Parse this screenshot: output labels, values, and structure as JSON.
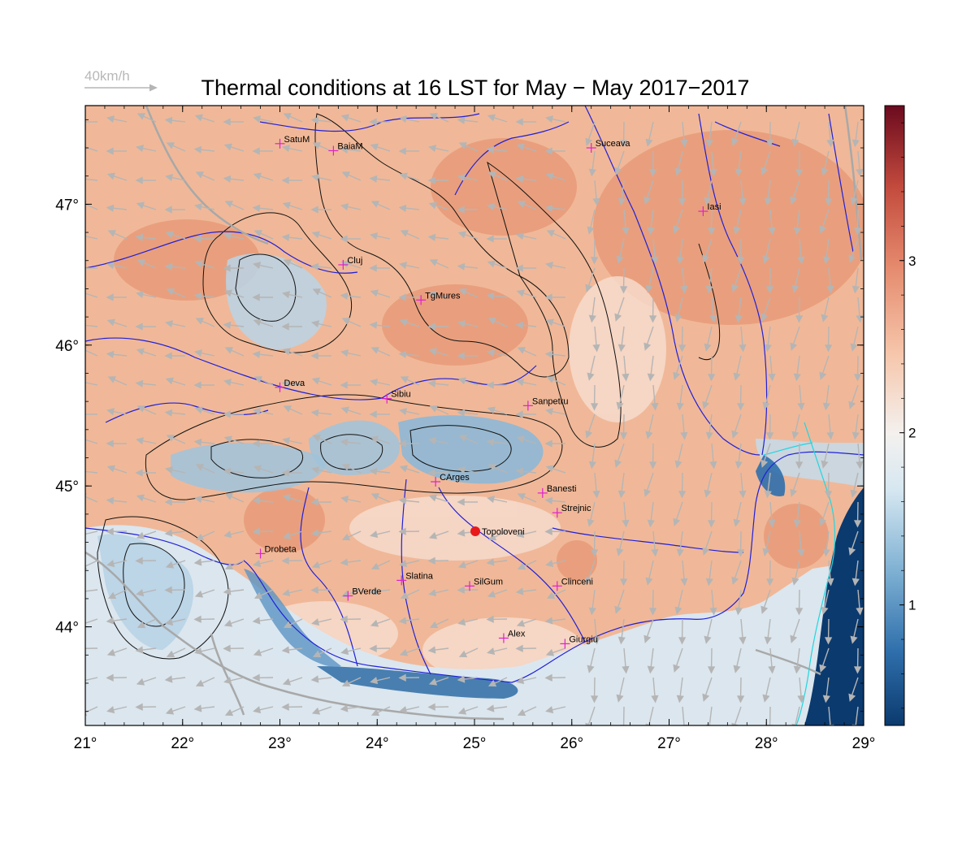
{
  "title": "Thermal conditions at 16 LST for May − May  2017−2017",
  "wind_legend": {
    "label": "40km/h",
    "arrow_color": "#b5b5b5"
  },
  "map": {
    "lon_range": [
      21,
      29
    ],
    "lat_range": [
      43.3,
      47.7
    ],
    "x_ticks": [
      "21°",
      "22°",
      "23°",
      "24°",
      "25°",
      "26°",
      "27°",
      "28°",
      "29°"
    ],
    "y_ticks": [
      {
        "lat": 44,
        "label": "44°"
      },
      {
        "lat": 45,
        "label": "45°"
      },
      {
        "lat": 46,
        "label": "46°"
      },
      {
        "lat": 47,
        "label": "47°"
      }
    ],
    "cities": [
      {
        "name": "SatuM",
        "lon": 23.0,
        "lat": 47.43
      },
      {
        "name": "BaiaM",
        "lon": 23.55,
        "lat": 47.38
      },
      {
        "name": "Suceava",
        "lon": 26.2,
        "lat": 47.4
      },
      {
        "name": "Iasi",
        "lon": 27.35,
        "lat": 46.95
      },
      {
        "name": "Cluj",
        "lon": 23.65,
        "lat": 46.57
      },
      {
        "name": "TgMures",
        "lon": 24.45,
        "lat": 46.32
      },
      {
        "name": "Deva",
        "lon": 23.0,
        "lat": 45.7
      },
      {
        "name": "Sibiu",
        "lon": 24.1,
        "lat": 45.62
      },
      {
        "name": "Sanpetru",
        "lon": 25.55,
        "lat": 45.57
      },
      {
        "name": "CArges",
        "lon": 24.6,
        "lat": 45.03
      },
      {
        "name": "Banesti",
        "lon": 25.7,
        "lat": 44.95
      },
      {
        "name": "Strejnic",
        "lon": 25.85,
        "lat": 44.81
      },
      {
        "name": "Drobeta",
        "lon": 22.8,
        "lat": 44.52
      },
      {
        "name": "Slatina",
        "lon": 24.25,
        "lat": 44.33
      },
      {
        "name": "SilGum",
        "lon": 24.95,
        "lat": 44.29
      },
      {
        "name": "Clinceni",
        "lon": 25.85,
        "lat": 44.29
      },
      {
        "name": "BVerde",
        "lon": 23.7,
        "lat": 44.22
      },
      {
        "name": "Alex",
        "lon": 25.3,
        "lat": 43.92
      },
      {
        "name": "Giurgiu",
        "lon": 25.93,
        "lat": 43.88
      }
    ],
    "highlight": {
      "name": "Topoloveni",
      "lon": 25.0,
      "lat": 44.68,
      "color": "#e8191b"
    },
    "city_marker_color": "#e020d0"
  },
  "colorbar": {
    "min": 0.3,
    "max": 3.9,
    "ticks": [
      {
        "value": 1,
        "label": "1"
      },
      {
        "value": 2,
        "label": "2"
      },
      {
        "value": 3,
        "label": "3"
      }
    ],
    "colors": [
      "#0b3a6e",
      "#2f6fac",
      "#7fb1d3",
      "#d6e7f1",
      "#f4f1ef",
      "#f6c6ab",
      "#e58a6d",
      "#c24a3d",
      "#6b0a1e"
    ]
  }
}
